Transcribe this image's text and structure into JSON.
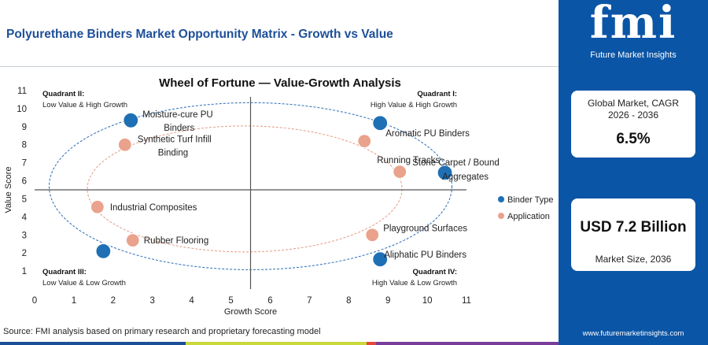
{
  "header": {
    "title": "Polyurethane Binders Market Opportunity Matrix - Growth vs Value"
  },
  "brand": {
    "logo_text": "fmi",
    "logo_sub": "Future Market Insights",
    "website": "www.futuremarketinsights.com"
  },
  "stats": [
    {
      "label": "Global Market, CAGR 2026 - 2036",
      "value": "6.5%"
    },
    {
      "label": "Market Size, 2036",
      "value": "USD 7.2 Billion"
    }
  ],
  "source": "Source: FMI analysis based on primary research and proprietary forecasting model",
  "colors": {
    "brand_blue": "#0b55a6",
    "binder": "#1f6fb5",
    "application": "#eaa28c",
    "bar": [
      "#1d4f99",
      "#c9d83a",
      "#e5483b",
      "#7a3c9b"
    ]
  },
  "chart_data": {
    "type": "scatter",
    "title": "Wheel of Fortune — Value-Growth Analysis",
    "xlabel": "Growth Score",
    "ylabel": "Value Score",
    "xlim": [
      0,
      11
    ],
    "ylim": [
      0,
      11
    ],
    "xticks": [
      0,
      1,
      2,
      3,
      4,
      5,
      6,
      7,
      8,
      9,
      10,
      11
    ],
    "yticks": [
      1,
      2,
      3,
      4,
      5,
      6,
      7,
      8,
      9,
      10,
      11
    ],
    "grid": false,
    "legend_position": "right",
    "dividers": {
      "x": 5.5,
      "y": 5.5
    },
    "quadrants": [
      {
        "name": "Quadrant II:",
        "desc": "Low Value & High Growth",
        "corner": "top-left"
      },
      {
        "name": "Quadrant I:",
        "desc": "High Value & High Growth",
        "corner": "top-right"
      },
      {
        "name": "Quadrant III:",
        "desc": "Low Value & Low Growth",
        "corner": "bottom-left"
      },
      {
        "name": "Quadrant IV:",
        "desc": "High Value & Low Growth",
        "corner": "bottom-right"
      }
    ],
    "series": [
      {
        "name": "Binder Type",
        "color": "#1f6fb5",
        "points": [
          {
            "label": "Moisture-cure PU Binders",
            "x": 2.45,
            "y": 9.35
          },
          {
            "label": "Aromatic PU Binders",
            "x": 8.8,
            "y": 9.2
          },
          {
            "label": "Stone Carpet / Bound Aggregates",
            "x": 10.45,
            "y": 6.45
          },
          {
            "label": "Aliphatic PU Binders",
            "x": 8.8,
            "y": 1.65
          },
          {
            "label": "",
            "x": 1.75,
            "y": 2.1
          }
        ]
      },
      {
        "name": "Application",
        "color": "#eaa28c",
        "points": [
          {
            "label": "Synthetic Turf Infill Binding",
            "x": 2.3,
            "y": 8.0
          },
          {
            "label": "Running Tracks",
            "x": 8.4,
            "y": 8.2
          },
          {
            "label": "",
            "x": 9.3,
            "y": 6.5
          },
          {
            "label": "Industrial Composites",
            "x": 1.6,
            "y": 4.55
          },
          {
            "label": "Playground Surfaces",
            "x": 8.6,
            "y": 3.0
          },
          {
            "label": "Rubber Flooring",
            "x": 2.5,
            "y": 2.7
          }
        ]
      }
    ]
  }
}
